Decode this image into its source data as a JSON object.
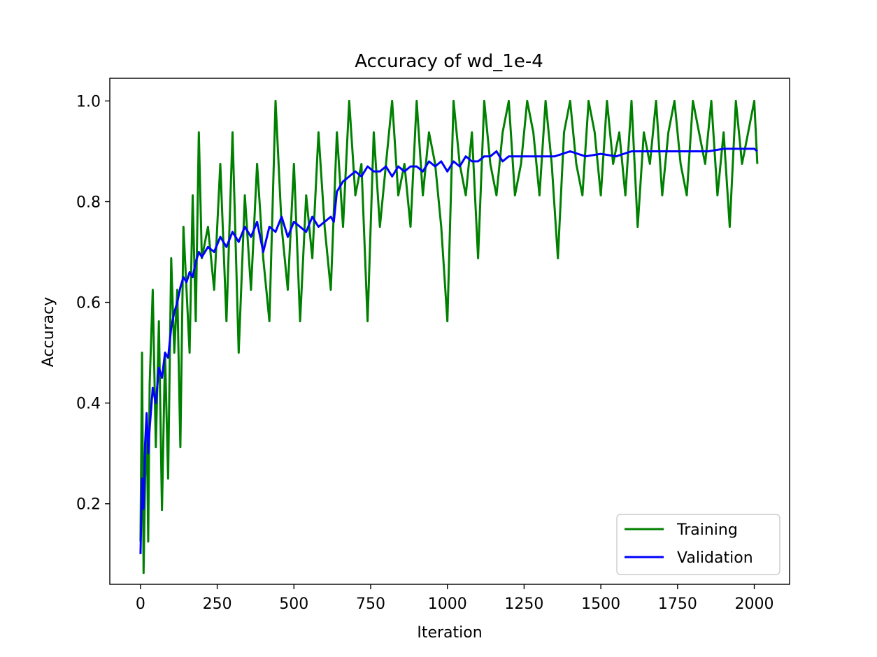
{
  "chart_data": {
    "type": "line",
    "title": "Accuracy of wd_1e-4",
    "xlabel": "Iteration",
    "ylabel": "Accuracy",
    "xlim": [
      -100,
      2115
    ],
    "ylim": [
      0.04,
      1.045
    ],
    "xticks": [
      0,
      250,
      500,
      750,
      1000,
      1250,
      1500,
      1750,
      2000
    ],
    "xtick_labels": [
      "0",
      "250",
      "500",
      "750",
      "1000",
      "1250",
      "1500",
      "1750",
      "2000"
    ],
    "yticks": [
      0.2,
      0.4,
      0.6,
      0.8,
      1.0
    ],
    "ytick_labels": [
      "0.2",
      "0.4",
      "0.6",
      "0.8",
      "1.0"
    ],
    "grid": false,
    "legend_position": "lower-right",
    "series": [
      {
        "name": "Training",
        "color": "#008000",
        "x": [
          0,
          5,
          10,
          15,
          20,
          25,
          30,
          40,
          50,
          60,
          70,
          80,
          90,
          100,
          110,
          120,
          130,
          140,
          150,
          160,
          170,
          180,
          190,
          200,
          220,
          240,
          260,
          280,
          300,
          320,
          340,
          360,
          380,
          400,
          420,
          440,
          460,
          480,
          500,
          520,
          540,
          560,
          580,
          600,
          620,
          640,
          660,
          680,
          700,
          720,
          740,
          760,
          780,
          800,
          820,
          840,
          860,
          880,
          900,
          920,
          940,
          960,
          980,
          1000,
          1020,
          1040,
          1060,
          1080,
          1100,
          1120,
          1140,
          1160,
          1180,
          1200,
          1220,
          1240,
          1260,
          1280,
          1300,
          1320,
          1340,
          1360,
          1380,
          1400,
          1420,
          1440,
          1460,
          1480,
          1500,
          1520,
          1540,
          1560,
          1580,
          1600,
          1620,
          1640,
          1660,
          1680,
          1700,
          1720,
          1740,
          1760,
          1780,
          1800,
          1820,
          1840,
          1860,
          1880,
          1900,
          1920,
          1940,
          1960,
          1980,
          2000,
          2010
        ],
        "values": [
          0.125,
          0.5,
          0.0625,
          0.25,
          0.375,
          0.125,
          0.4375,
          0.625,
          0.3125,
          0.5625,
          0.1875,
          0.5,
          0.25,
          0.6875,
          0.5,
          0.625,
          0.3125,
          0.75,
          0.625,
          0.5,
          0.8125,
          0.5625,
          0.9375,
          0.6875,
          0.75,
          0.625,
          0.875,
          0.5625,
          0.9375,
          0.5,
          0.8125,
          0.625,
          0.875,
          0.6875,
          0.5625,
          1.0,
          0.75,
          0.625,
          0.875,
          0.5625,
          0.8125,
          0.6875,
          0.9375,
          0.75,
          0.625,
          0.9375,
          0.75,
          1.0,
          0.8125,
          0.875,
          0.5625,
          0.9375,
          0.75,
          0.875,
          1.0,
          0.8125,
          0.875,
          0.75,
          1.0,
          0.8125,
          0.9375,
          0.875,
          0.75,
          0.5625,
          1.0,
          0.875,
          0.8125,
          0.9375,
          0.6875,
          1.0,
          0.875,
          0.8125,
          0.9375,
          1.0,
          0.8125,
          0.875,
          1.0,
          0.9375,
          0.8125,
          1.0,
          0.875,
          0.6875,
          0.9375,
          1.0,
          0.875,
          0.8125,
          1.0,
          0.9375,
          0.8125,
          1.0,
          0.875,
          0.9375,
          0.8125,
          1.0,
          0.75,
          0.9375,
          0.875,
          1.0,
          0.8125,
          0.9375,
          1.0,
          0.875,
          0.8125,
          1.0,
          0.9375,
          0.875,
          1.0,
          0.8125,
          0.9375,
          0.75,
          1.0,
          0.875,
          0.9375,
          1.0,
          0.875
        ]
      },
      {
        "name": "Validation",
        "color": "#0000ff",
        "x": [
          0,
          5,
          10,
          15,
          20,
          25,
          30,
          40,
          50,
          60,
          70,
          80,
          90,
          100,
          110,
          120,
          130,
          140,
          150,
          160,
          170,
          180,
          190,
          200,
          220,
          240,
          260,
          280,
          300,
          320,
          340,
          360,
          380,
          400,
          420,
          440,
          460,
          480,
          500,
          520,
          540,
          560,
          580,
          600,
          620,
          630,
          640,
          660,
          680,
          700,
          720,
          740,
          760,
          780,
          800,
          820,
          840,
          860,
          880,
          900,
          920,
          940,
          960,
          980,
          1000,
          1020,
          1040,
          1060,
          1080,
          1100,
          1120,
          1140,
          1160,
          1180,
          1200,
          1250,
          1300,
          1350,
          1400,
          1450,
          1500,
          1550,
          1600,
          1650,
          1700,
          1750,
          1800,
          1850,
          1900,
          1950,
          2000,
          2010
        ],
        "values": [
          0.1,
          0.25,
          0.19,
          0.32,
          0.38,
          0.3,
          0.35,
          0.43,
          0.4,
          0.47,
          0.45,
          0.5,
          0.49,
          0.55,
          0.58,
          0.6,
          0.63,
          0.65,
          0.64,
          0.66,
          0.65,
          0.68,
          0.7,
          0.69,
          0.71,
          0.7,
          0.73,
          0.71,
          0.74,
          0.72,
          0.75,
          0.73,
          0.76,
          0.7,
          0.75,
          0.74,
          0.77,
          0.73,
          0.76,
          0.75,
          0.74,
          0.77,
          0.75,
          0.76,
          0.77,
          0.76,
          0.82,
          0.84,
          0.85,
          0.86,
          0.85,
          0.87,
          0.86,
          0.86,
          0.87,
          0.85,
          0.87,
          0.86,
          0.87,
          0.87,
          0.86,
          0.88,
          0.87,
          0.88,
          0.86,
          0.88,
          0.87,
          0.89,
          0.88,
          0.88,
          0.89,
          0.89,
          0.9,
          0.88,
          0.89,
          0.89,
          0.89,
          0.89,
          0.9,
          0.89,
          0.895,
          0.89,
          0.9,
          0.9,
          0.9,
          0.9,
          0.9,
          0.9,
          0.905,
          0.905,
          0.905,
          0.9
        ]
      }
    ]
  }
}
